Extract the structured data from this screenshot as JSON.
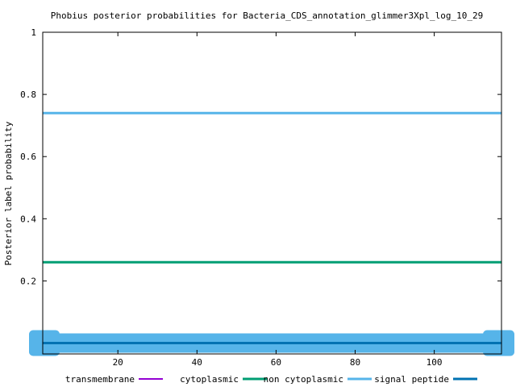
{
  "chart_data": {
    "type": "line",
    "title": "Phobius posterior probabilities for Bacteria_CDS_annotation_glimmer3Xpl_log_10_29",
    "xlabel": "",
    "ylabel": "Posterior label probability",
    "xlim": [
      1,
      117
    ],
    "ylim": [
      -0.035,
      1
    ],
    "x_ticks": [
      20,
      40,
      60,
      80,
      100
    ],
    "y_ticks": [
      0.2,
      0.4,
      0.6,
      0.8,
      1
    ],
    "x_tick_labels": [
      "20",
      "40",
      "60",
      "80",
      "100"
    ],
    "y_tick_labels": [
      "0.2",
      "0.4",
      "0.6",
      "0.8",
      "1"
    ],
    "grid": false,
    "legend_position": "bottom",
    "series": [
      {
        "name": "transmembrane",
        "color": "#9400d3",
        "points": [
          [
            22,
            0
          ],
          [
            37,
            0
          ]
        ],
        "style": "dotted"
      },
      {
        "name": "cytoplasmic",
        "color": "#009e73",
        "points": [
          [
            1,
            0.26
          ],
          [
            117,
            0.26
          ]
        ],
        "style": "solid"
      },
      {
        "name": "non cytoplasmic",
        "color": "#56b4e9",
        "points": [
          [
            1,
            0.74
          ],
          [
            117,
            0.74
          ]
        ],
        "style": "solid"
      },
      {
        "name": "signal peptide",
        "color": "#0072b2",
        "points": [
          [
            1,
            0
          ],
          [
            117,
            0
          ]
        ],
        "style": "solid"
      }
    ],
    "legend_labels": [
      "transmembrane",
      "cytoplasmic",
      "non cytoplasmic",
      "signal peptide"
    ],
    "signal_peptide_band": {
      "color": "#56b4e9",
      "x": [
        1,
        117
      ]
    }
  }
}
